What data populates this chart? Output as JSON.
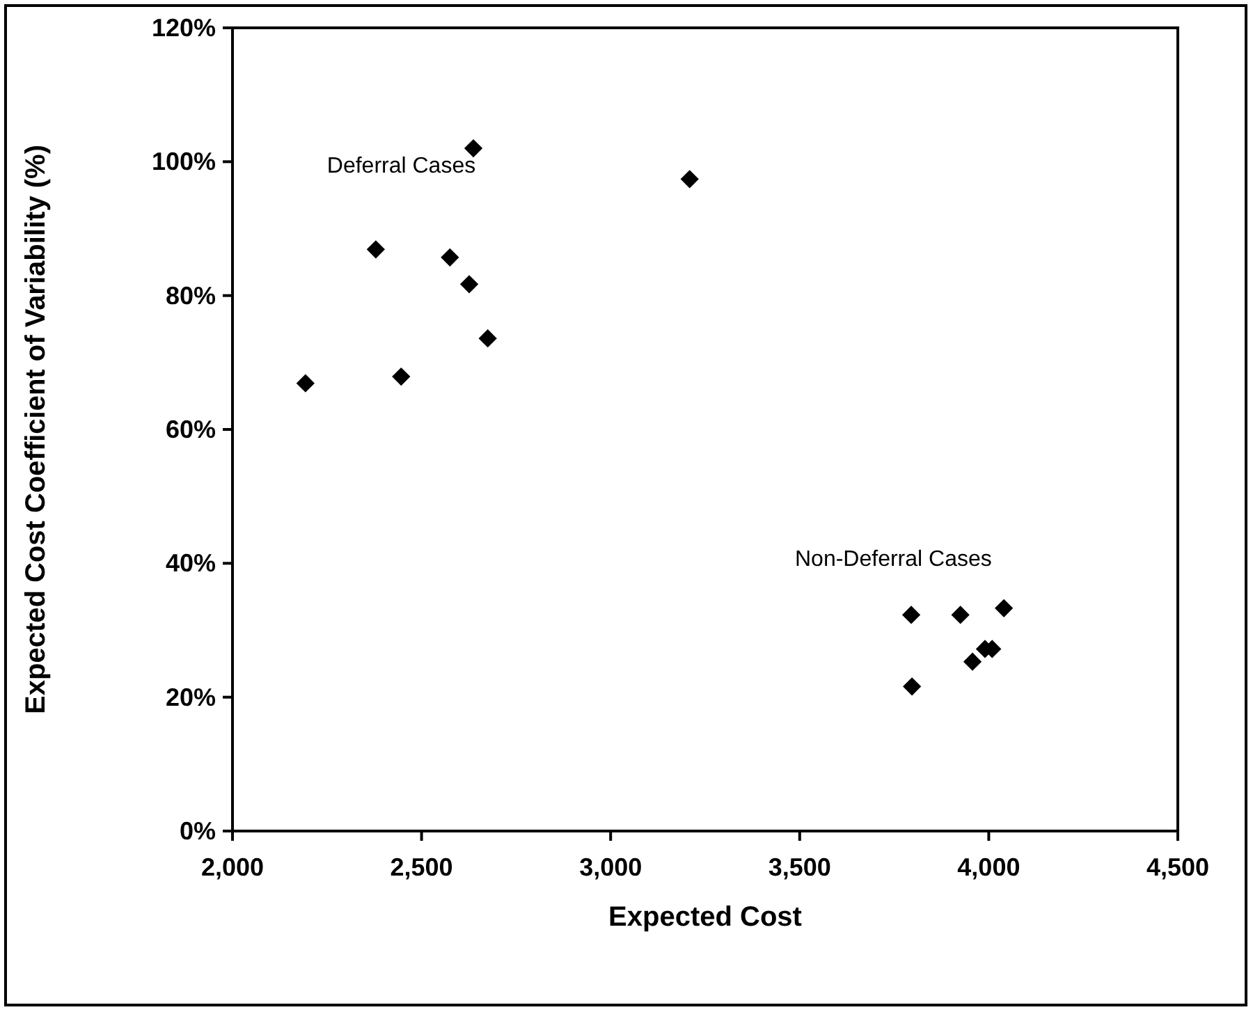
{
  "chart_data": {
    "type": "scatter",
    "xlabel": "Expected Cost",
    "ylabel": "Expected Cost Coefficient of Variability (%)",
    "x": [
      2193,
      2379,
      2446,
      2575,
      2626,
      2637,
      2675,
      3209,
      3795,
      3925,
      4040,
      3957,
      3990,
      4009,
      3797
    ],
    "values": [
      66.9,
      86.9,
      67.9,
      85.7,
      81.7,
      102,
      73.6,
      97.4,
      32.3,
      32.3,
      33.3,
      25.3,
      27.2,
      27.2,
      21.6
    ],
    "color": "#000000",
    "marker": "diamond",
    "xlim": [
      2000,
      4500
    ],
    "xticks": [
      {
        "value": 2000,
        "label": "2,000"
      },
      {
        "value": 2500,
        "label": "2,500"
      },
      {
        "value": 3000,
        "label": "3,000"
      },
      {
        "value": 3500,
        "label": "3,500"
      },
      {
        "value": 4000,
        "label": "4,000"
      },
      {
        "value": 4500,
        "label": "4,500"
      }
    ],
    "ylim": [
      0,
      120
    ],
    "yticks": [
      {
        "value": 0,
        "label": "0%"
      },
      {
        "value": 20,
        "label": "20%"
      },
      {
        "value": 40,
        "label": "40%"
      },
      {
        "value": 60,
        "label": "60%"
      },
      {
        "value": 80,
        "label": "80%"
      },
      {
        "value": 100,
        "label": "100%"
      },
      {
        "value": 120,
        "label": "120%"
      }
    ],
    "grid": false,
    "annotations": [
      "Deferral Cases",
      "Non-Deferral Cases"
    ]
  }
}
